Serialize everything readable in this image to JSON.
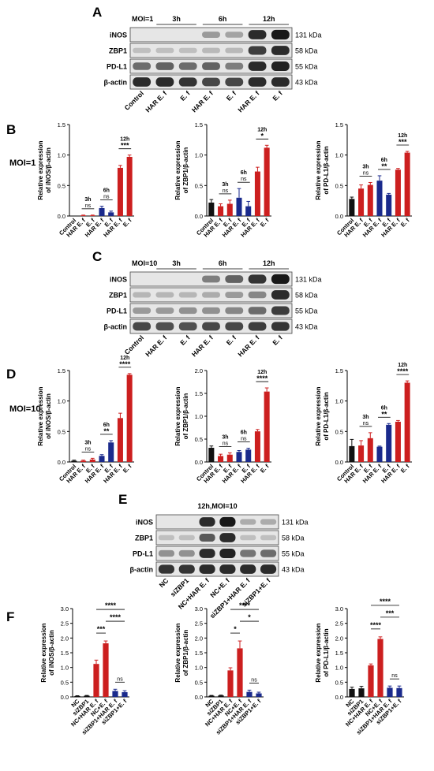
{
  "panels": {
    "A": {
      "letter": "A",
      "moi": "MOI=1",
      "time_labels": [
        "3h",
        "6h",
        "12h"
      ],
      "rows": [
        "iNOS",
        "ZBP1",
        "PD-L1",
        "β-actin"
      ],
      "kda": [
        "131 kDa",
        "58 kDa",
        "55 kDa",
        "43 kDa"
      ],
      "lanes": [
        "Control",
        "HAR E. f",
        "E. f",
        "HAR E. f",
        "E. f",
        "HAR E. f",
        "E. f"
      ]
    },
    "B": {
      "letter": "B",
      "moi": "MOI=1"
    },
    "C": {
      "letter": "C",
      "moi": "MOI=10",
      "time_labels": [
        "3h",
        "6h",
        "12h"
      ],
      "rows": [
        "iNOS",
        "ZBP1",
        "PD-L1",
        "β-actin"
      ],
      "kda": [
        "131 kDa",
        "58 kDa",
        "55 kDa",
        "43 kDa"
      ],
      "lanes": [
        "Control",
        "HAR E. f",
        "E. f",
        "HAR E. f",
        "E. f",
        "HAR E. f",
        "E. f"
      ]
    },
    "D": {
      "letter": "D",
      "moi": "MOI=10"
    },
    "E": {
      "letter": "E",
      "condition": "12h,MOI=10",
      "rows": [
        "iNOS",
        "ZBP1",
        "PD-L1",
        "β-actin"
      ],
      "kda": [
        "131 kDa",
        "58 kDa",
        "55 kDa",
        "43 kDa"
      ],
      "lanes": [
        "NC",
        "siZBP1",
        "NC+HAR E. f",
        "NC+E. f",
        "siZBP1+HAR E. f",
        "siZBP1+E. f"
      ]
    },
    "F": {
      "letter": "F"
    }
  },
  "colors": {
    "control": "#111111",
    "har": "#cc1f1f",
    "ef": "#cc1f1f",
    "blue": "#1a2a8c",
    "red": "#cc1f1f",
    "black": "#111111"
  },
  "chart_data": [
    {
      "id": "B1",
      "type": "bar",
      "ylabel": "Relative expression of iNOS/β-actin",
      "ylim": [
        0,
        1.5
      ],
      "yticks": [
        "0.0",
        "0.5",
        "1.0",
        "1.5"
      ],
      "ytick_values": [
        0,
        0.5,
        1.0,
        1.5
      ],
      "categories": [
        "Control",
        "HAR E. f",
        "E. f",
        "HAR E. f",
        "E. f",
        "HAR E. f",
        "E. f"
      ],
      "values": [
        0.0,
        0.01,
        0.01,
        0.13,
        0.06,
        0.79,
        0.97
      ],
      "errors": [
        0.0,
        0.005,
        0.005,
        0.03,
        0.02,
        0.04,
        0.03
      ],
      "bar_colors": [
        "black",
        "red",
        "red",
        "blue",
        "blue",
        "red",
        "red"
      ],
      "annotations": [
        {
          "time": "3h",
          "sig": "ns",
          "from": 1,
          "to": 2
        },
        {
          "time": "6h",
          "sig": "ns",
          "from": 3,
          "to": 4
        },
        {
          "time": "12h",
          "sig": "***",
          "from": 5,
          "to": 6
        }
      ]
    },
    {
      "id": "B2",
      "type": "bar",
      "ylabel": "Relative expression of ZBP1/β-actin",
      "ylim": [
        0,
        1.5
      ],
      "yticks": [
        "0.0",
        "0.5",
        "1.0",
        "1.5"
      ],
      "ytick_values": [
        0,
        0.5,
        1.0,
        1.5
      ],
      "categories": [
        "Control",
        "HAR E. f",
        "E. f",
        "HAR E. f",
        "E. f",
        "HAR E. f",
        "E. f"
      ],
      "values": [
        0.22,
        0.16,
        0.2,
        0.3,
        0.16,
        0.73,
        1.12
      ],
      "errors": [
        0.05,
        0.04,
        0.06,
        0.15,
        0.08,
        0.07,
        0.04
      ],
      "bar_colors": [
        "black",
        "red",
        "red",
        "blue",
        "blue",
        "red",
        "red"
      ],
      "annotations": [
        {
          "time": "3h",
          "sig": "ns",
          "from": 1,
          "to": 2
        },
        {
          "time": "6h",
          "sig": "ns",
          "from": 3,
          "to": 4
        },
        {
          "time": "12h",
          "sig": "*",
          "from": 5,
          "to": 6
        }
      ]
    },
    {
      "id": "B3",
      "type": "bar",
      "ylabel": "Relative expression of PD-L1/β-actin",
      "ylim": [
        0,
        1.5
      ],
      "yticks": [
        "0.0",
        "0.5",
        "1.0",
        "1.5"
      ],
      "ytick_values": [
        0,
        0.5,
        1.0,
        1.5
      ],
      "categories": [
        "Control",
        "HAR E. f",
        "E. f",
        "HAR E. f",
        "E. f",
        "HAR E. f",
        "E. f"
      ],
      "values": [
        0.28,
        0.45,
        0.51,
        0.58,
        0.35,
        0.76,
        1.04
      ],
      "errors": [
        0.03,
        0.06,
        0.04,
        0.08,
        0.02,
        0.02,
        0.02
      ],
      "bar_colors": [
        "black",
        "red",
        "red",
        "blue",
        "blue",
        "red",
        "red"
      ],
      "annotations": [
        {
          "time": "3h",
          "sig": "ns",
          "from": 1,
          "to": 2
        },
        {
          "time": "6h",
          "sig": "**",
          "from": 3,
          "to": 4
        },
        {
          "time": "12h",
          "sig": "***",
          "from": 5,
          "to": 6
        }
      ]
    },
    {
      "id": "D1",
      "type": "bar",
      "ylabel": "Relative expression of iNOS/β-actin",
      "ylim": [
        0,
        1.5
      ],
      "yticks": [
        "0.0",
        "0.5",
        "1.0",
        "1.5"
      ],
      "ytick_values": [
        0,
        0.5,
        1.0,
        1.5
      ],
      "categories": [
        "Control",
        "HAR E. f",
        "E. f",
        "HAR E. f",
        "E. f",
        "HAR E. f",
        "E. f"
      ],
      "values": [
        0.02,
        0.02,
        0.04,
        0.1,
        0.32,
        0.72,
        1.43
      ],
      "errors": [
        0.01,
        0.01,
        0.02,
        0.02,
        0.03,
        0.08,
        0.02
      ],
      "bar_colors": [
        "black",
        "red",
        "red",
        "blue",
        "blue",
        "red",
        "red"
      ],
      "annotations": [
        {
          "time": "3h",
          "sig": "ns",
          "from": 1,
          "to": 2
        },
        {
          "time": "6h",
          "sig": "**",
          "from": 3,
          "to": 4
        },
        {
          "time": "12h",
          "sig": "****",
          "from": 5,
          "to": 6
        }
      ]
    },
    {
      "id": "D2",
      "type": "bar",
      "ylabel": "Relative expression of ZBP1/β-actin",
      "ylim": [
        0,
        2.0
      ],
      "yticks": [
        "0.0",
        "0.5",
        "1.0",
        "1.5",
        "2.0"
      ],
      "ytick_values": [
        0,
        0.5,
        1.0,
        1.5,
        2.0
      ],
      "categories": [
        "Control",
        "HAR E. f",
        "E. f",
        "HAR E. f",
        "E. f",
        "HAR E. f",
        "E. f"
      ],
      "values": [
        0.31,
        0.13,
        0.16,
        0.22,
        0.27,
        0.67,
        1.54
      ],
      "errors": [
        0.04,
        0.04,
        0.04,
        0.03,
        0.03,
        0.04,
        0.08
      ],
      "bar_colors": [
        "black",
        "red",
        "red",
        "blue",
        "blue",
        "red",
        "red"
      ],
      "annotations": [
        {
          "time": "3h",
          "sig": "ns",
          "from": 1,
          "to": 2
        },
        {
          "time": "6h",
          "sig": "ns",
          "from": 3,
          "to": 4
        },
        {
          "time": "12h",
          "sig": "****",
          "from": 5,
          "to": 6
        }
      ]
    },
    {
      "id": "D3",
      "type": "bar",
      "ylabel": "Relative expression of PD-L1/β-actin",
      "ylim": [
        0,
        1.5
      ],
      "yticks": [
        "0.0",
        "0.5",
        "1.0",
        "1.5"
      ],
      "ytick_values": [
        0,
        0.5,
        1.0,
        1.5
      ],
      "categories": [
        "Control",
        "HAR E. f",
        "E. f",
        "HAR E. f",
        "E. f",
        "HAR E. f",
        "E. f"
      ],
      "values": [
        0.26,
        0.27,
        0.39,
        0.25,
        0.61,
        0.66,
        1.3
      ],
      "errors": [
        0.11,
        0.08,
        0.09,
        0.01,
        0.02,
        0.02,
        0.03
      ],
      "bar_colors": [
        "black",
        "red",
        "red",
        "blue",
        "blue",
        "red",
        "red"
      ],
      "annotations": [
        {
          "time": "3h",
          "sig": "ns",
          "from": 1,
          "to": 2
        },
        {
          "time": "6h",
          "sig": "**",
          "from": 3,
          "to": 4
        },
        {
          "time": "12h",
          "sig": "****",
          "from": 5,
          "to": 6
        }
      ]
    },
    {
      "id": "F1",
      "type": "bar",
      "ylabel": "Relative expression of iNOS/β-actin",
      "ylim": [
        0,
        3.0
      ],
      "yticks": [
        "0.0",
        "0.5",
        "1.0",
        "1.5",
        "2.0",
        "2.5",
        "3.0"
      ],
      "ytick_values": [
        0,
        0.5,
        1.0,
        1.5,
        2.0,
        2.5,
        3.0
      ],
      "categories": [
        "NC",
        "siZBP1",
        "NC+HAR E. f",
        "NC+E. f",
        "siZBP1+HAR E. f",
        "siZBP1+E. f"
      ],
      "values": [
        0.03,
        0.04,
        1.12,
        1.82,
        0.2,
        0.16
      ],
      "errors": [
        0.01,
        0.01,
        0.13,
        0.08,
        0.06,
        0.05
      ],
      "bar_colors": [
        "black",
        "black",
        "red",
        "red",
        "blue",
        "blue"
      ],
      "brackets": [
        {
          "sig": "***",
          "from": 2,
          "to": 3,
          "level": 0
        },
        {
          "sig": "****",
          "from": 3,
          "to": 5,
          "level": 1
        },
        {
          "sig": "****",
          "from": 2,
          "to": 5,
          "level": 2
        },
        {
          "sig": "ns",
          "from": 4,
          "to": 5,
          "level": -1
        }
      ]
    },
    {
      "id": "F2",
      "type": "bar",
      "ylabel": "Relative expression of ZBP1/β-actin",
      "ylim": [
        0,
        3.0
      ],
      "yticks": [
        "0.0",
        "0.5",
        "1.0",
        "1.5",
        "2.0",
        "2.5",
        "3.0"
      ],
      "ytick_values": [
        0,
        0.5,
        1.0,
        1.5,
        2.0,
        2.5,
        3.0
      ],
      "categories": [
        "NC",
        "siZBP1",
        "NC+HAR E. f",
        "NC+E. f",
        "siZBP1+HAR E. f",
        "siZBP1+E. f"
      ],
      "values": [
        0.04,
        0.05,
        0.9,
        1.65,
        0.17,
        0.12
      ],
      "errors": [
        0.01,
        0.01,
        0.09,
        0.25,
        0.06,
        0.04
      ],
      "bar_colors": [
        "black",
        "black",
        "red",
        "red",
        "blue",
        "blue"
      ],
      "brackets": [
        {
          "sig": "*",
          "from": 2,
          "to": 3,
          "level": 0
        },
        {
          "sig": "*",
          "from": 3,
          "to": 5,
          "level": 1
        },
        {
          "sig": "****",
          "from": 2,
          "to": 5,
          "level": 2
        },
        {
          "sig": "ns",
          "from": 4,
          "to": 5,
          "level": -1
        }
      ]
    },
    {
      "id": "F3",
      "type": "bar",
      "ylabel": "Relative expression of PD-L1/β-actin",
      "ylim": [
        0,
        3.0
      ],
      "yticks": [
        "0.0",
        "0.5",
        "1.0",
        "1.5",
        "2.0",
        "2.5",
        "3.0"
      ],
      "ytick_values": [
        0,
        0.5,
        1.0,
        1.5,
        2.0,
        2.5,
        3.0
      ],
      "categories": [
        "NC",
        "siZBP1",
        "NC+HAR E. f",
        "NC+E. f",
        "siZBP1+HAR E. f",
        "siZBP1+E. f"
      ],
      "values": [
        0.27,
        0.29,
        1.07,
        1.97,
        0.31,
        0.3
      ],
      "errors": [
        0.06,
        0.07,
        0.05,
        0.07,
        0.06,
        0.07
      ],
      "bar_colors": [
        "black",
        "black",
        "red",
        "red",
        "blue",
        "blue"
      ],
      "brackets": [
        {
          "sig": "****",
          "from": 2,
          "to": 3,
          "level": 0
        },
        {
          "sig": "***",
          "from": 3,
          "to": 5,
          "level": 1
        },
        {
          "sig": "****",
          "from": 2,
          "to": 5,
          "level": 2
        },
        {
          "sig": "ns",
          "from": 4,
          "to": 5,
          "level": -1
        }
      ]
    }
  ]
}
